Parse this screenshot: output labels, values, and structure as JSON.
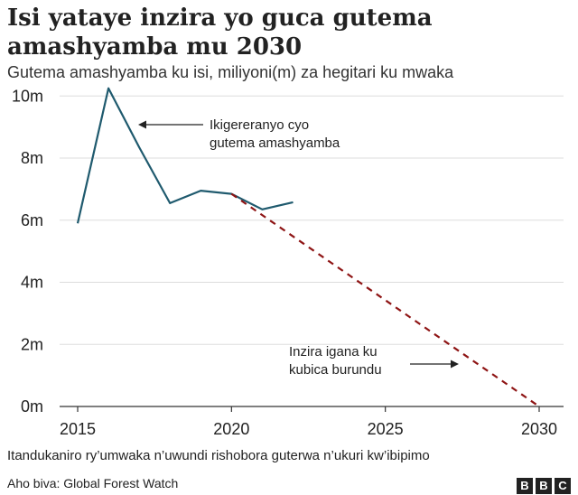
{
  "title": "Isi yataye inzira yo guca gutema amashyamba mu 2030",
  "subtitle": "Gutema amashyamba ku isi, miliyoni(m) za hegitari ku mwaka",
  "footnote": "Itandukaniro ry’umwaka n’uwundi rishobora guterwa n’ukuri kw’ibipimo",
  "source": "Aho biva: Global Forest Watch",
  "logo": [
    "B",
    "B",
    "C"
  ],
  "chart_data": {
    "type": "line",
    "title": "Isi yataye inzira yo guca gutema amashyamba mu 2030",
    "subtitle": "Gutema amashyamba ku isi, miliyoni(m) za hegitari ku mwaka",
    "xlim": [
      2015,
      2031
    ],
    "ylim": [
      0,
      10.3
    ],
    "x_ticks": [
      2015,
      2020,
      2025,
      2030
    ],
    "y_ticks": [
      {
        "value": 0,
        "label": "0m"
      },
      {
        "value": 2,
        "label": "2m"
      },
      {
        "value": 4,
        "label": "4m"
      },
      {
        "value": 6,
        "label": "6m"
      },
      {
        "value": 8,
        "label": "8m"
      },
      {
        "value": 10,
        "label": "10m"
      }
    ],
    "grid": "horizontal",
    "series": [
      {
        "style": "solid",
        "color": "#1f5a6e",
        "x": [
          2015,
          2016,
          2017,
          2018,
          2019,
          2020,
          2021,
          2022
        ],
        "y": [
          5.9,
          10.25,
          8.35,
          6.55,
          6.95,
          6.85,
          6.35,
          6.58
        ]
      },
      {
        "style": "dashed",
        "color": "#8e1414",
        "x": [
          2020,
          2030
        ],
        "y": [
          6.85,
          0
        ]
      }
    ],
    "annotations": [
      {
        "lines": [
          "Ikigereranyo cyo",
          "gutema amashyamba"
        ]
      },
      {
        "lines": [
          "Inzira igana ku",
          "kubica burundu"
        ]
      }
    ]
  }
}
